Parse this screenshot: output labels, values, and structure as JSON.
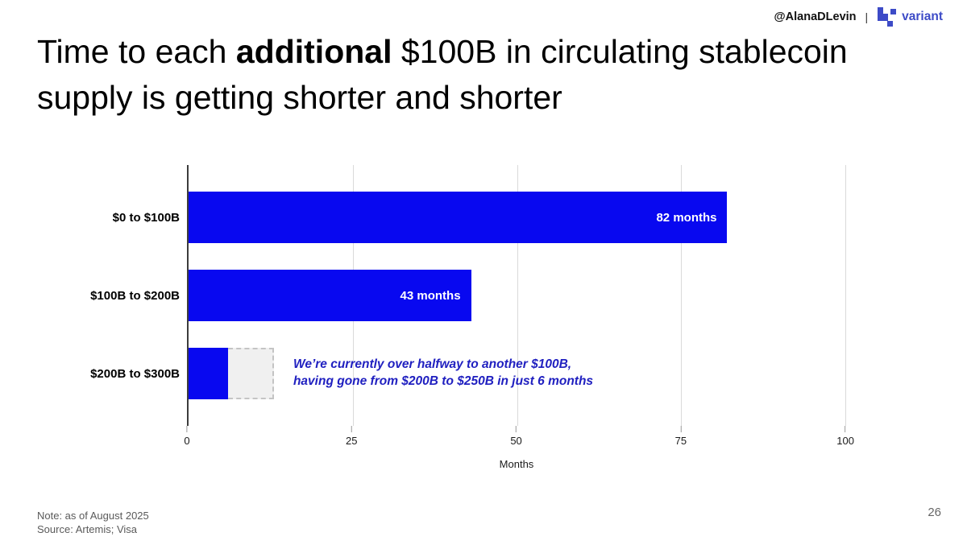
{
  "header": {
    "author_handle": "@AlanaDLevin",
    "separator": "|",
    "brand_name": "variant",
    "brand_color": "#3D4BC7"
  },
  "title": {
    "part1": "Time to each ",
    "emphasis": "additional",
    "part2": " $100B in circulating stablecoin supply is getting shorter and shorter"
  },
  "chart_data": {
    "type": "bar",
    "orientation": "horizontal",
    "title": "",
    "xlabel": "Months",
    "categories": [
      "$0 to $100B",
      "$100B to $200B",
      "$200B to $300B"
    ],
    "values": [
      82,
      43,
      6
    ],
    "value_labels": [
      "82 months",
      "43 months",
      ""
    ],
    "x_ticks": [
      "0",
      "25",
      "50",
      "75",
      "100"
    ],
    "x_tick_values": [
      0,
      25,
      50,
      75,
      100
    ],
    "xlim": [
      0,
      105
    ],
    "grid": true,
    "bar_color": "#0808F0",
    "projection": {
      "category_index": 2,
      "from_months": 6,
      "to_months": 13,
      "style": "dashed-outline"
    },
    "annotation": {
      "line1": "We’re currently over halfway to another $100B,",
      "line2": "having gone from $200B to $250B in just 6 months",
      "color": "#2020C0"
    }
  },
  "footer": {
    "note": "Note: as of August 2025",
    "source": "Source: Artemis; Visa",
    "page_number": "26"
  }
}
